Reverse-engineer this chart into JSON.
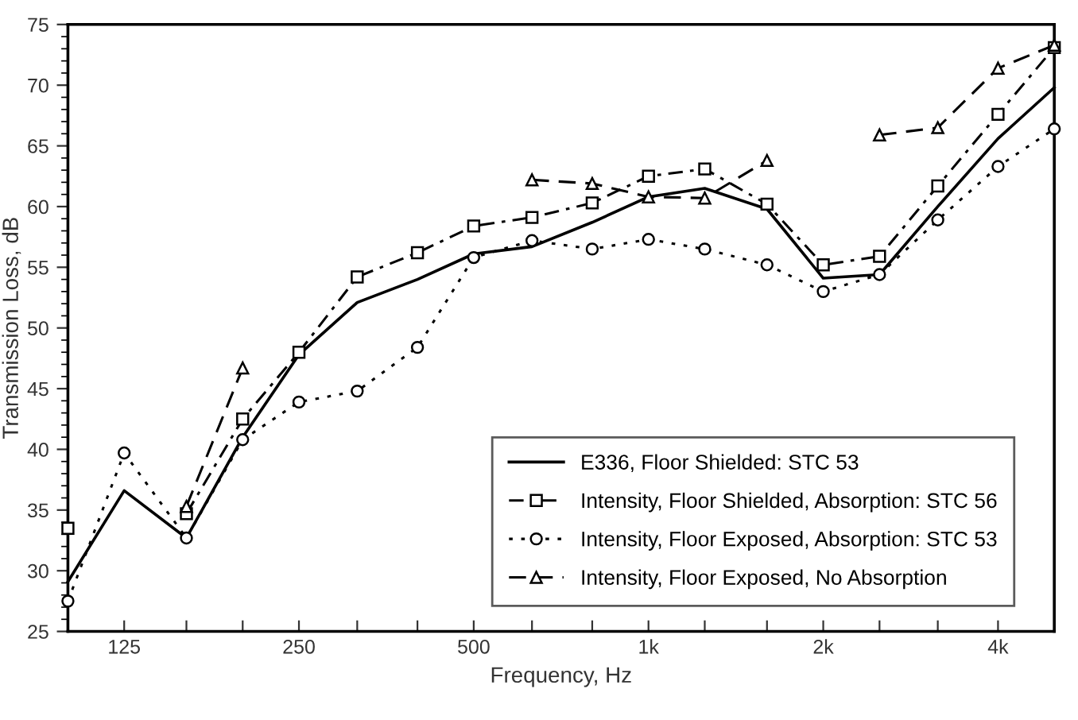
{
  "chart_data": {
    "type": "line",
    "xlabel": "Frequency, Hz",
    "ylabel": "Transmission Loss, dB",
    "x": [
      100,
      125,
      160,
      200,
      250,
      315,
      400,
      500,
      630,
      800,
      1000,
      1250,
      1600,
      2000,
      2500,
      3150,
      4000,
      5000
    ],
    "log": "x",
    "xlim": [
      100,
      5000
    ],
    "xticks": [
      {
        "value": 100,
        "label": null
      },
      {
        "value": 125,
        "label": "125"
      },
      {
        "value": 160,
        "label": null
      },
      {
        "value": 200,
        "label": null
      },
      {
        "value": 250,
        "label": "250"
      },
      {
        "value": 315,
        "label": null
      },
      {
        "value": 400,
        "label": null
      },
      {
        "value": 500,
        "label": "500"
      },
      {
        "value": 630,
        "label": null
      },
      {
        "value": 800,
        "label": null
      },
      {
        "value": 1000,
        "label": "1k"
      },
      {
        "value": 1250,
        "label": null
      },
      {
        "value": 1600,
        "label": null
      },
      {
        "value": 2000,
        "label": "2k"
      },
      {
        "value": 2500,
        "label": null
      },
      {
        "value": 3150,
        "label": null
      },
      {
        "value": 4000,
        "label": "4k"
      },
      {
        "value": 5000,
        "label": null
      }
    ],
    "ylim": [
      25,
      75
    ],
    "yticks": [
      25,
      30,
      35,
      40,
      45,
      50,
      55,
      60,
      65,
      70,
      75
    ],
    "grid": false,
    "legend": "bottom right",
    "series": [
      {
        "name": "E336, Floor Shielded: STC 53",
        "color": "#000000",
        "marker": "none",
        "line_style": "solid",
        "values": [
          29.1,
          36.6,
          32.7,
          41.0,
          47.8,
          52.1,
          54.0,
          56.1,
          56.7,
          58.7,
          60.8,
          61.5,
          59.8,
          54.1,
          54.4,
          60.0,
          65.6,
          69.8
        ]
      },
      {
        "name": "Intensity, Floor Shielded, Absorption: STC 56",
        "color": "#000000",
        "marker": "square",
        "line_style": "dashdot",
        "values": [
          33.5,
          null,
          34.7,
          42.5,
          48.0,
          54.2,
          56.2,
          58.4,
          59.1,
          60.3,
          62.5,
          63.1,
          60.2,
          55.2,
          55.9,
          61.7,
          67.6,
          73.1
        ]
      },
      {
        "name": "Intensity, Floor Exposed, Absorption: STC 53",
        "color": "#000000",
        "marker": "circle",
        "line_style": "dotted",
        "values": [
          27.5,
          39.7,
          32.7,
          40.8,
          43.9,
          44.8,
          48.4,
          55.8,
          57.2,
          56.5,
          57.3,
          56.5,
          55.2,
          53.0,
          54.4,
          58.9,
          63.3,
          66.4
        ]
      },
      {
        "name": "Intensity, Floor Exposed, No Absorption",
        "color": "#000000",
        "marker": "triangle",
        "line_style": "dashed",
        "values": [
          null,
          null,
          35.3,
          46.7,
          null,
          null,
          null,
          null,
          62.2,
          61.9,
          60.8,
          60.7,
          63.8,
          null,
          65.9,
          66.5,
          71.4,
          73.3
        ]
      }
    ]
  }
}
